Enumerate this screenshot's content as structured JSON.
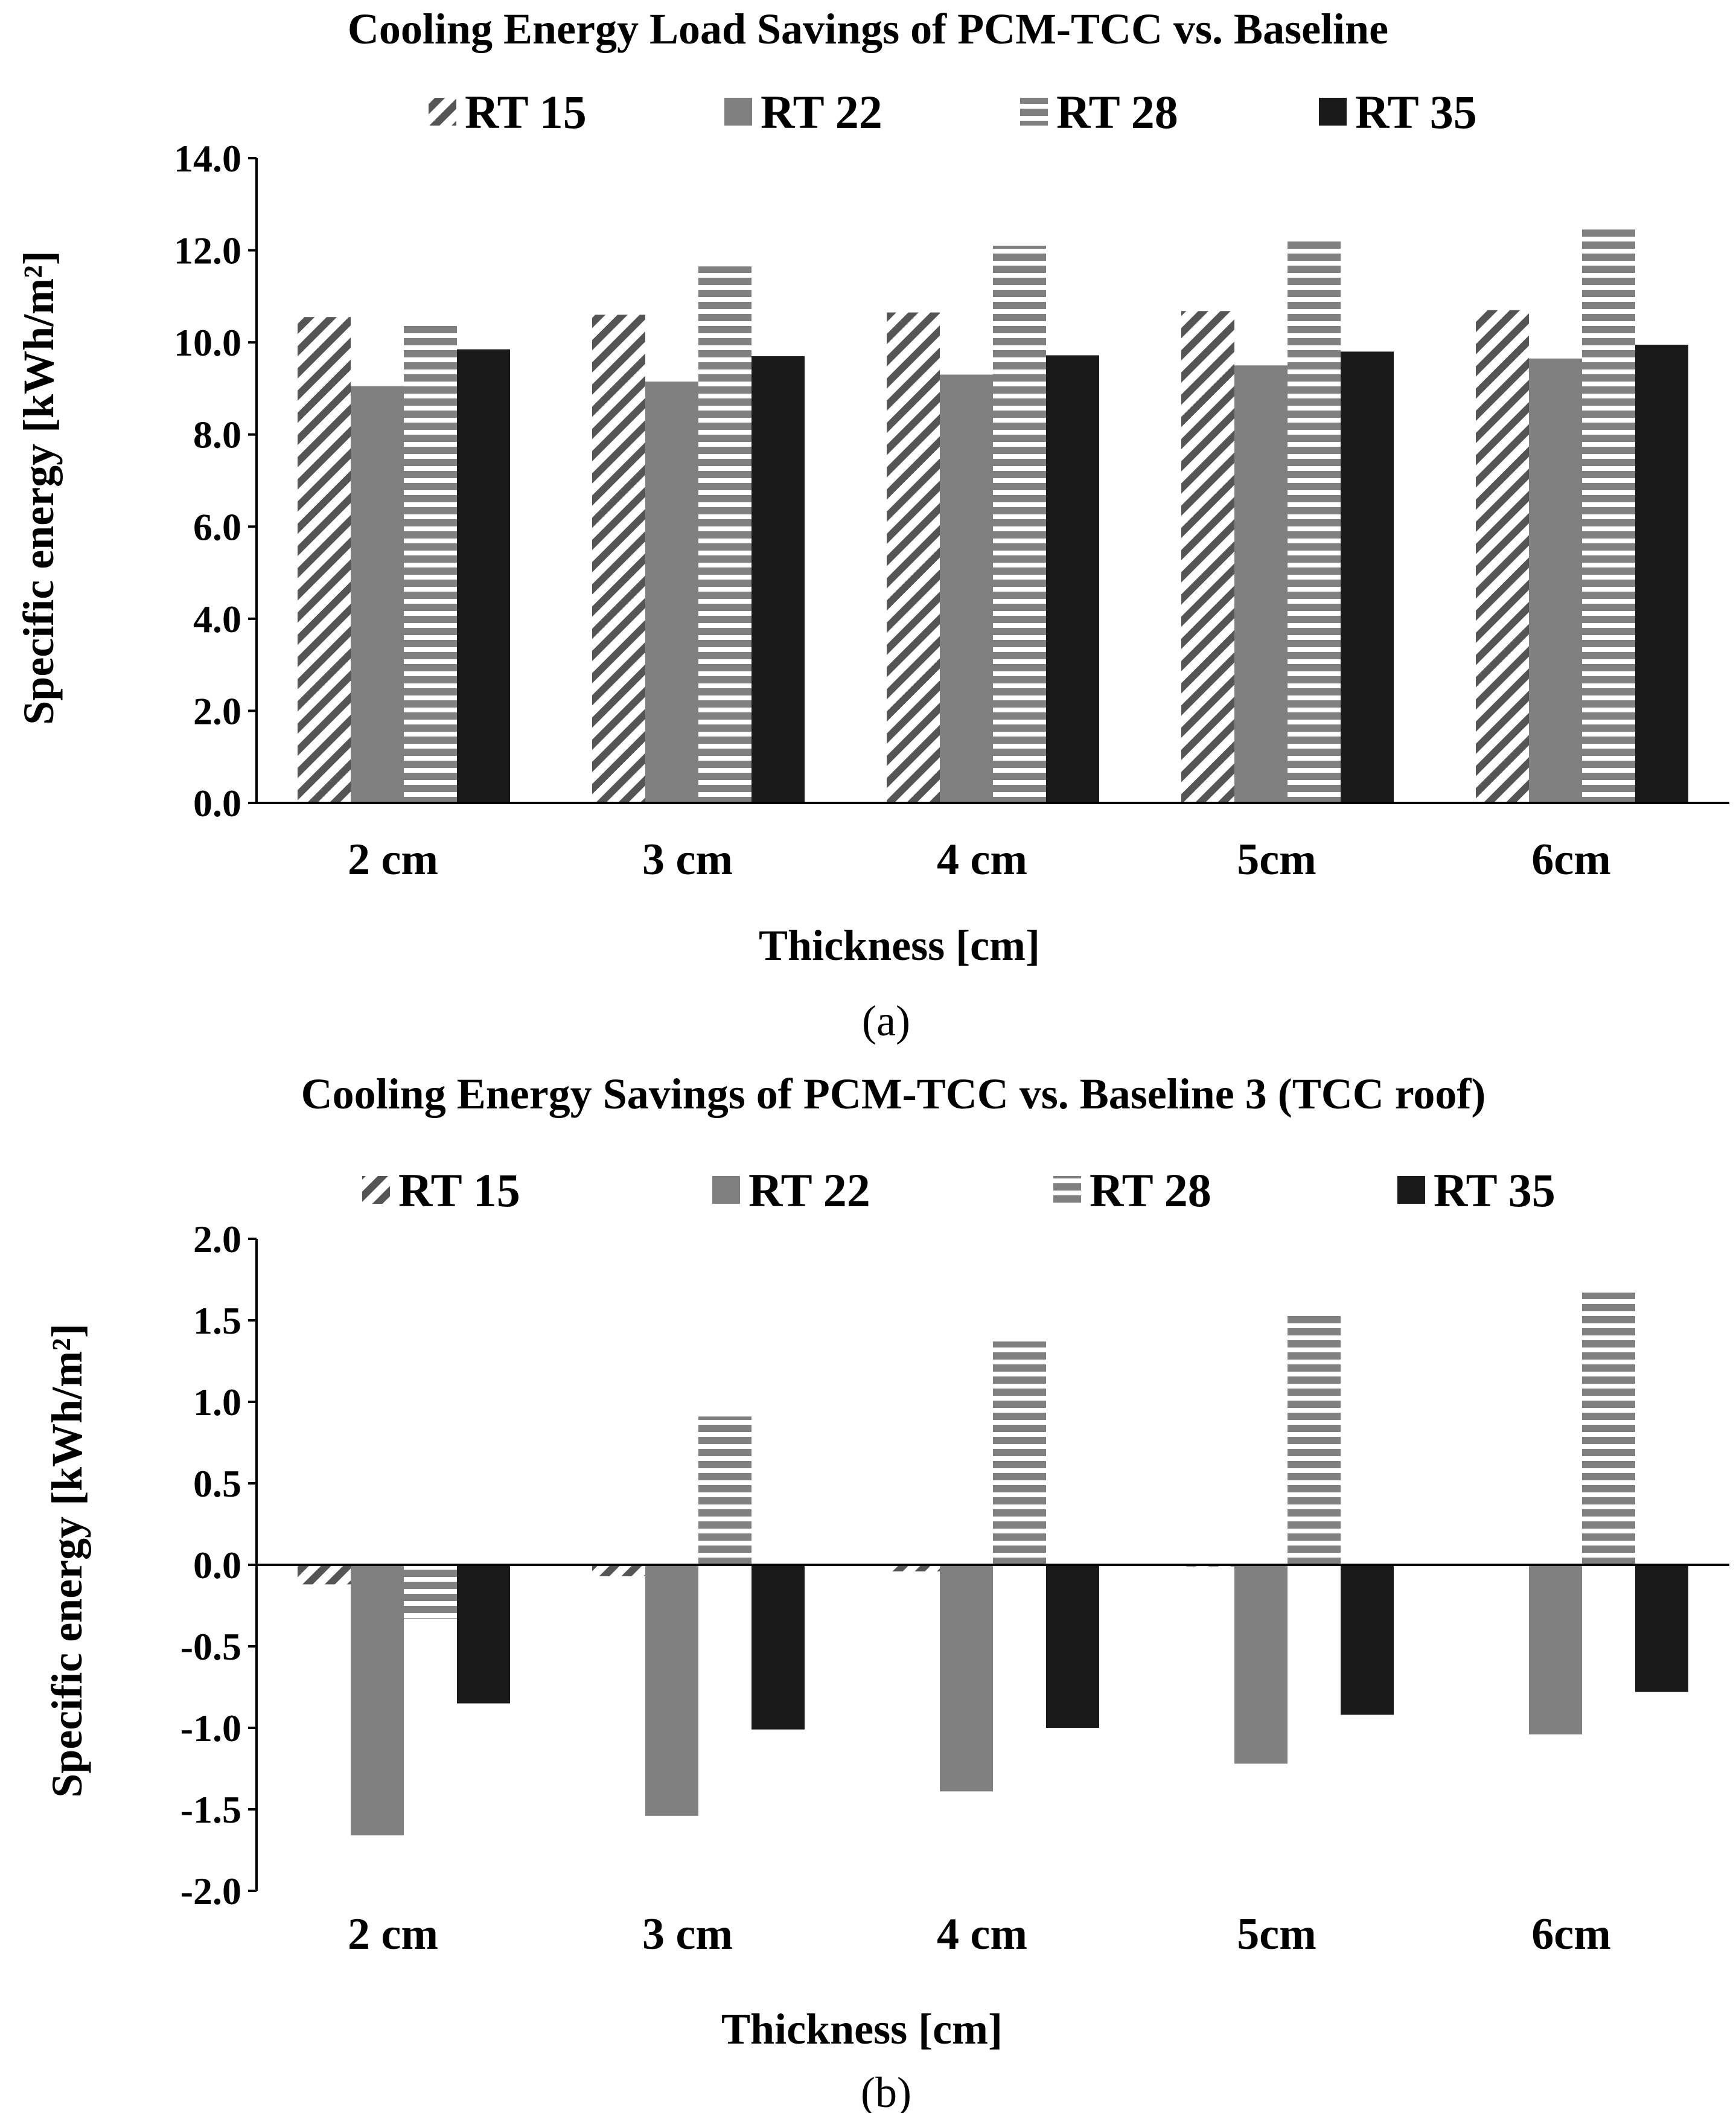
{
  "chart_data": [
    {
      "type": "bar",
      "title": "Cooling Energy Load Savings of PCM-TCC vs. Baseline",
      "panel_label": "(a)",
      "xlabel": "Thickness [cm]",
      "ylabel": "Specific energy [kWh/m²]",
      "ylim": [
        0,
        14
      ],
      "yticks": [
        "0.0",
        "2.0",
        "4.0",
        "6.0",
        "8.0",
        "10.0",
        "12.0",
        "14.0"
      ],
      "legend_position": "top",
      "categories": [
        "2 cm",
        "3 cm",
        "4 cm",
        "5cm",
        "6cm"
      ],
      "series": [
        {
          "name": "RT 15",
          "values": [
            10.55,
            10.6,
            10.65,
            10.68,
            10.7
          ],
          "pattern": "diagonal",
          "color": "#555555"
        },
        {
          "name": "RT 22",
          "values": [
            9.05,
            9.15,
            9.3,
            9.5,
            9.65
          ],
          "pattern": "solid",
          "color": "#808080"
        },
        {
          "name": "RT 28",
          "values": [
            10.4,
            11.65,
            12.1,
            12.25,
            12.45
          ],
          "pattern": "horizontal",
          "color": "#808080"
        },
        {
          "name": "RT 35",
          "values": [
            9.85,
            9.7,
            9.72,
            9.8,
            9.95
          ],
          "pattern": "solid",
          "color": "#1a1a1a"
        }
      ]
    },
    {
      "type": "bar",
      "title": "Cooling Energy Savings of PCM-TCC vs. Baseline 3 (TCC roof)",
      "panel_label": "(b)",
      "xlabel": "Thickness [cm]",
      "ylabel": "Specific energy [kWh/m²]",
      "ylim": [
        -2,
        2
      ],
      "yticks": [
        "-2.0",
        "-1.5",
        "-1.0",
        "-0.5",
        "0.0",
        "0.5",
        "1.0",
        "1.5",
        "2.0"
      ],
      "legend_position": "top",
      "categories": [
        "2 cm",
        "3 cm",
        "4 cm",
        "5cm",
        "6cm"
      ],
      "series": [
        {
          "name": "RT 15",
          "values": [
            -0.12,
            -0.07,
            -0.04,
            -0.01,
            0.0
          ],
          "pattern": "diagonal",
          "color": "#555555"
        },
        {
          "name": "RT 22",
          "values": [
            -1.66,
            -1.54,
            -1.39,
            -1.22,
            -1.04
          ],
          "pattern": "solid",
          "color": "#808080"
        },
        {
          "name": "RT 28",
          "values": [
            -0.33,
            0.91,
            1.37,
            1.53,
            1.67
          ],
          "pattern": "horizontal",
          "color": "#808080"
        },
        {
          "name": "RT 35",
          "values": [
            -0.85,
            -1.01,
            -1.0,
            -0.92,
            -0.78
          ],
          "pattern": "solid",
          "color": "#1a1a1a"
        }
      ]
    }
  ]
}
